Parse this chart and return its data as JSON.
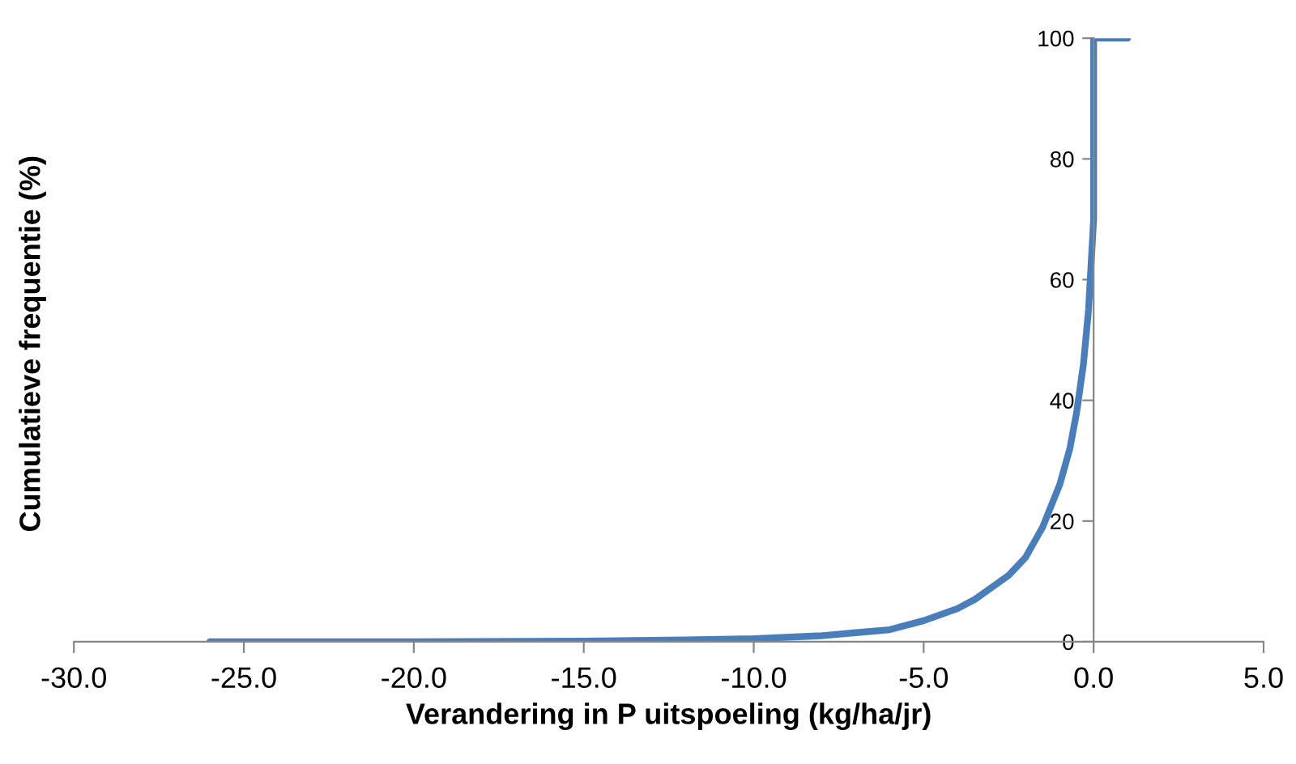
{
  "chart_data": {
    "type": "line",
    "xlabel": "Verandering in P uitspoeling (kg/ha/jr)",
    "ylabel": "Cumulatieve frequentie (%)",
    "series": [
      {
        "color": "#4a7ebb",
        "x": [
          -26,
          -20,
          -15,
          -12,
          -10,
          -8,
          -7,
          -6,
          -5,
          -4,
          -3.5,
          -3,
          -2.5,
          -2,
          -1.5,
          -1,
          -0.7,
          -0.5,
          -0.3,
          -0.15,
          0,
          0,
          0.5,
          1
        ],
        "values": [
          0,
          0,
          0.1,
          0.3,
          0.5,
          1,
          1.5,
          2,
          3.5,
          5.5,
          7,
          9,
          11,
          14,
          19,
          26,
          32,
          38,
          46,
          55,
          70,
          100,
          100,
          100
        ]
      }
    ],
    "xlim": [
      -30,
      5
    ],
    "xticks": [
      {
        "value": -30,
        "label": "-30.0"
      },
      {
        "value": -25,
        "label": "-25.0"
      },
      {
        "value": -20,
        "label": "-20.0"
      },
      {
        "value": -15,
        "label": "-15.0"
      },
      {
        "value": -10,
        "label": "-10.0"
      },
      {
        "value": -5,
        "label": "-5.0"
      },
      {
        "value": 0,
        "label": "0.0"
      },
      {
        "value": 5,
        "label": "5.0"
      }
    ],
    "ylim": [
      0,
      100
    ],
    "yticks": [
      0,
      20,
      40,
      60,
      80,
      100
    ],
    "grid": false,
    "legend": false
  }
}
